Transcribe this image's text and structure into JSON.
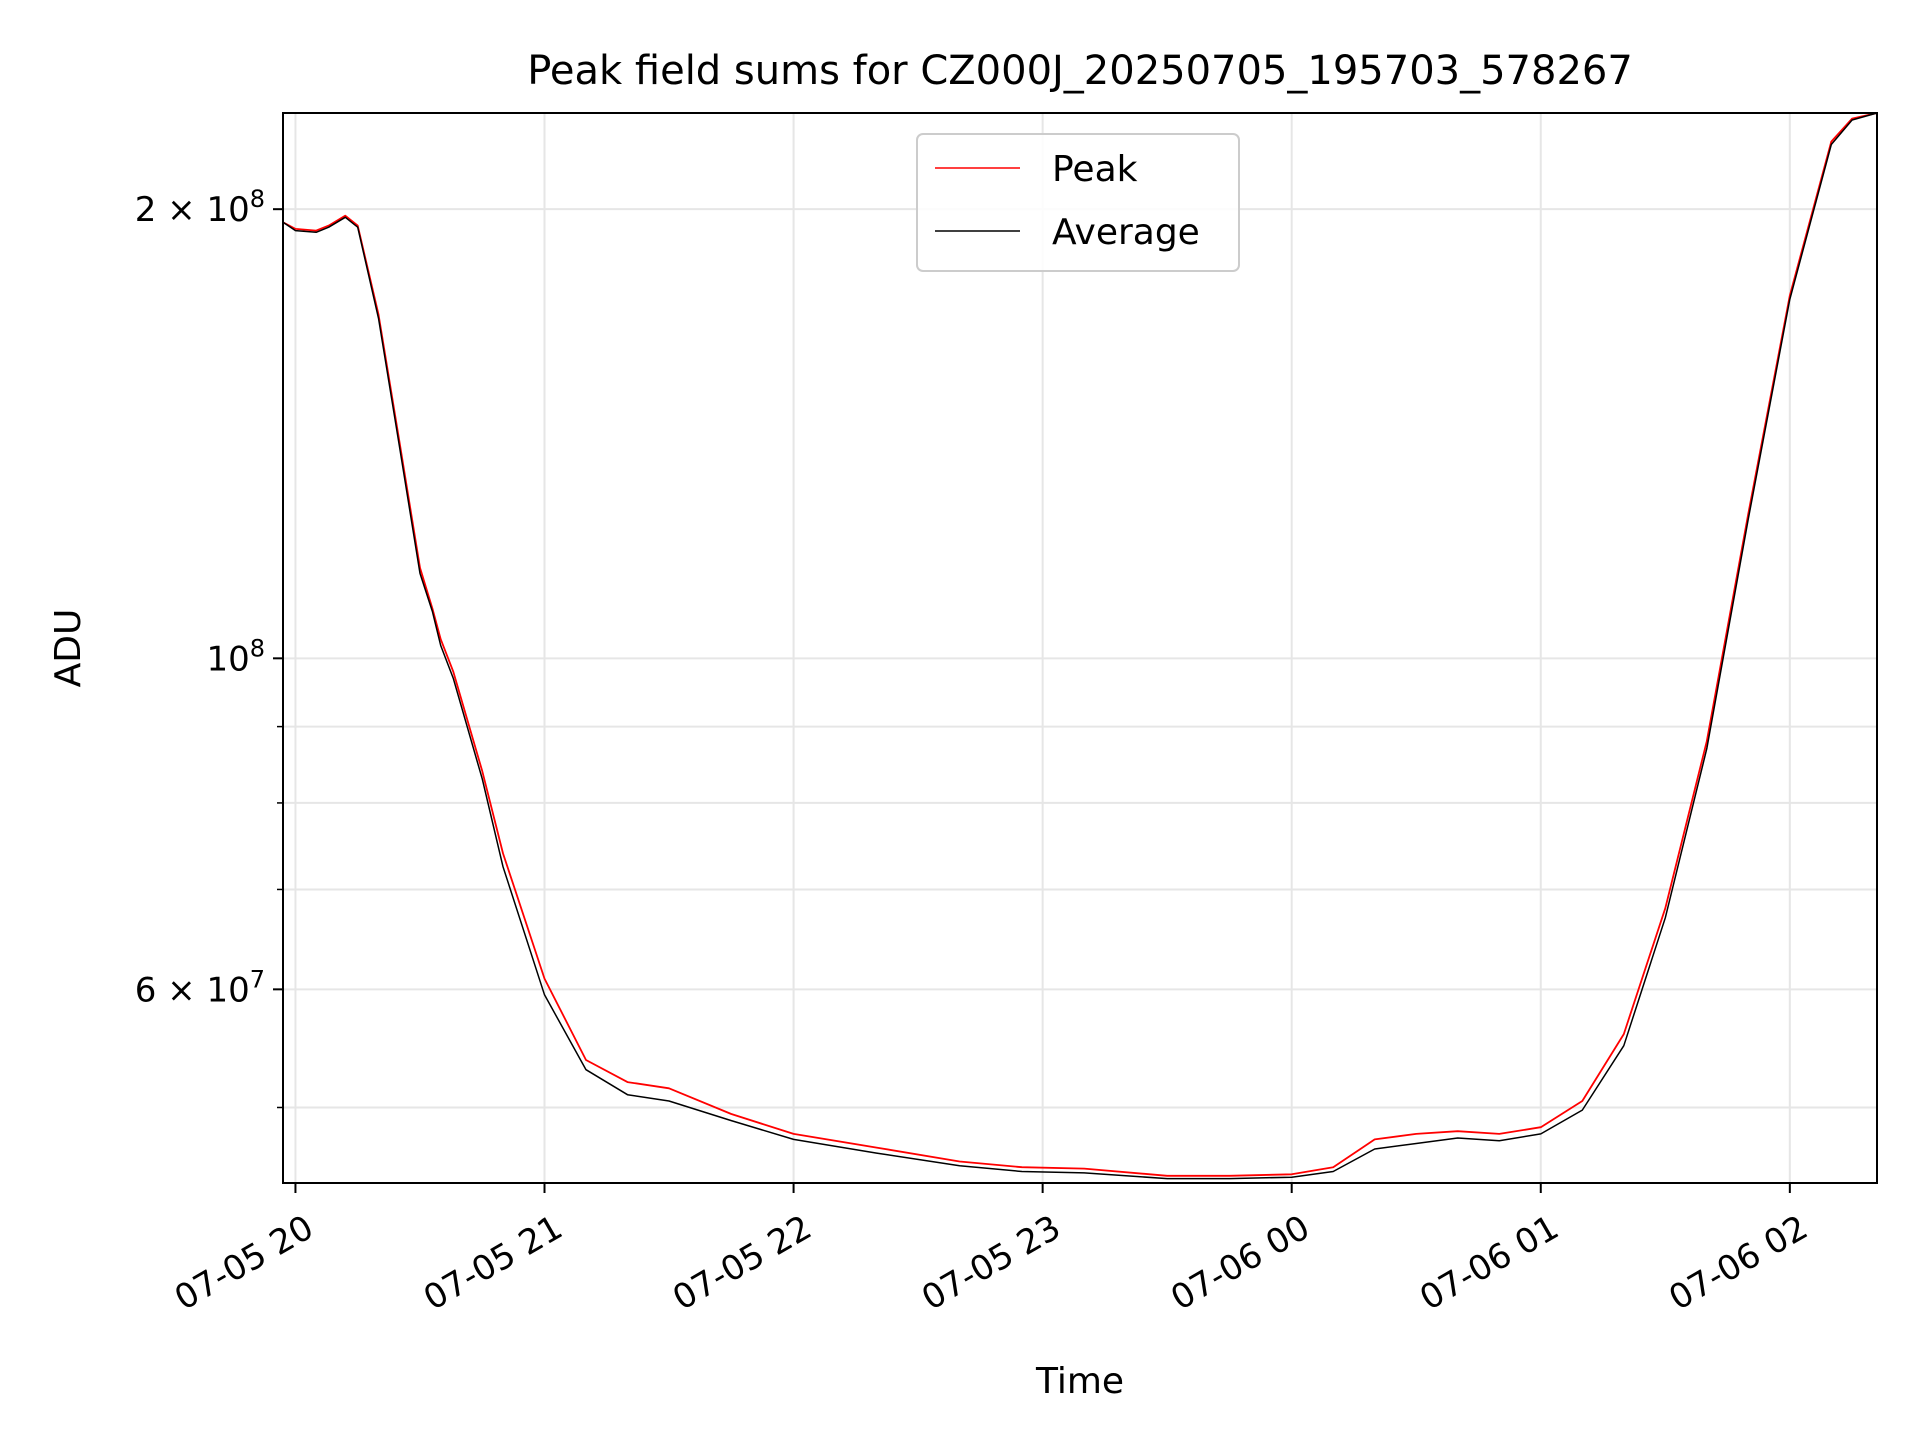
{
  "chart_data": {
    "type": "line",
    "title": "Peak field sums for CZ000J_20250705_195703_578267",
    "xlabel": "Time",
    "ylabel": "ADU",
    "y_scale": "log",
    "ylim": [
      44500000,
      232000000
    ],
    "xlim": [
      "2025-07-05 19:57",
      "2025-07-06 02:21"
    ],
    "grid": true,
    "legend_position": "top-center",
    "x_ticks": [
      "07-05 20",
      "07-05 21",
      "07-05 22",
      "07-05 23",
      "07-06 00",
      "07-06 01",
      "07-06 02"
    ],
    "y_tick_labels": [
      {
        "value": 200000000,
        "mantissa": "2",
        "times": "×",
        "base": "10",
        "exp": "8"
      },
      {
        "value": 100000000,
        "mantissa": "",
        "times": "",
        "base": "10",
        "exp": "8"
      },
      {
        "value": 60000000,
        "mantissa": "6",
        "times": "×",
        "base": "10",
        "exp": "7"
      }
    ],
    "y_minor_ticks": [
      50000000,
      70000000,
      80000000,
      90000000
    ],
    "x": [
      "2025-07-05 19:57",
      "2025-07-05 20:00",
      "2025-07-05 20:05",
      "2025-07-05 20:08",
      "2025-07-05 20:12",
      "2025-07-05 20:15",
      "2025-07-05 20:20",
      "2025-07-05 20:25",
      "2025-07-05 20:30",
      "2025-07-05 20:33",
      "2025-07-05 20:35",
      "2025-07-05 20:38",
      "2025-07-05 20:45",
      "2025-07-05 20:50",
      "2025-07-05 21:00",
      "2025-07-05 21:10",
      "2025-07-05 21:20",
      "2025-07-05 21:30",
      "2025-07-05 21:45",
      "2025-07-05 22:00",
      "2025-07-05 22:20",
      "2025-07-05 22:40",
      "2025-07-05 22:55",
      "2025-07-05 23:10",
      "2025-07-05 23:30",
      "2025-07-05 23:45",
      "2025-07-06 00:00",
      "2025-07-06 00:10",
      "2025-07-06 00:20",
      "2025-07-06 00:30",
      "2025-07-06 00:40",
      "2025-07-06 00:50",
      "2025-07-06 01:00",
      "2025-07-06 01:10",
      "2025-07-06 01:20",
      "2025-07-06 01:30",
      "2025-07-06 01:40",
      "2025-07-06 01:50",
      "2025-07-06 02:00",
      "2025-07-06 02:10",
      "2025-07-06 02:15",
      "2025-07-06 02:21"
    ],
    "series": [
      {
        "name": "Peak",
        "color": "#ff0000",
        "values": [
          196000000,
          194000000,
          193500000,
          195000000,
          198000000,
          195000000,
          170000000,
          140000000,
          115000000,
          108000000,
          103000000,
          98000000,
          84000000,
          74000000,
          61000000,
          53800000,
          52000000,
          51500000,
          49500000,
          48000000,
          47000000,
          46000000,
          45600000,
          45500000,
          45000000,
          45000000,
          45100000,
          45600000,
          47600000,
          48000000,
          48200000,
          48000000,
          48500000,
          50500000,
          56000000,
          68000000,
          88000000,
          125000000,
          175000000,
          222000000,
          230000000,
          232000000
        ]
      },
      {
        "name": "Average",
        "color": "#000000",
        "values": [
          196000000,
          193500000,
          193000000,
          194500000,
          197500000,
          194500000,
          169000000,
          139000000,
          114000000,
          107500000,
          102000000,
          97000000,
          83000000,
          72500000,
          59500000,
          53000000,
          51000000,
          50500000,
          49000000,
          47600000,
          46600000,
          45700000,
          45300000,
          45200000,
          44800000,
          44800000,
          44900000,
          45300000,
          46900000,
          47300000,
          47700000,
          47500000,
          48000000,
          49800000,
          55000000,
          67000000,
          87000000,
          124000000,
          174000000,
          221000000,
          229500000,
          232000000
        ]
      }
    ]
  }
}
